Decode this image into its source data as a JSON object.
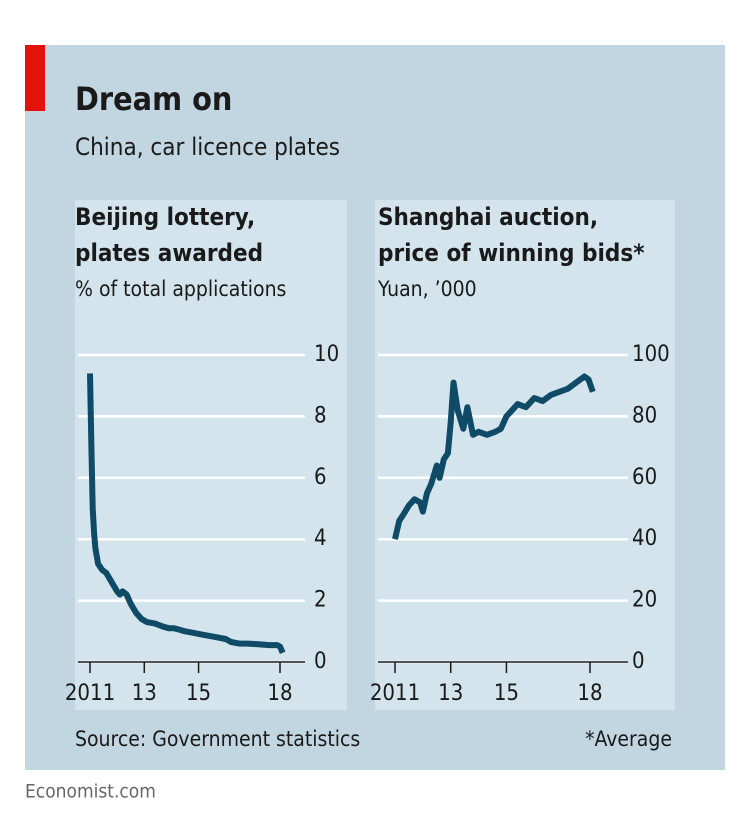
{
  "header": {
    "title": "Dream on",
    "subtitle": "China, car licence plates"
  },
  "chart_data": [
    {
      "type": "line",
      "title": [
        "Beijing lottery,",
        "plates awarded"
      ],
      "subtitle": "% of total applications",
      "series": [
        {
          "name": "Beijing lottery",
          "color": "#0f4b66",
          "x": [
            2011.0,
            2011.05,
            2011.1,
            2011.15,
            2011.2,
            2011.3,
            2011.45,
            2011.6,
            2011.8,
            2012.0,
            2012.1,
            2012.2,
            2012.35,
            2012.5,
            2012.7,
            2012.9,
            2013.1,
            2013.4,
            2013.7,
            2013.9,
            2014.1,
            2014.3,
            2014.5,
            2014.8,
            2015.1,
            2015.4,
            2015.7,
            2016.0,
            2016.2,
            2016.5,
            2016.8,
            2017.2,
            2017.6,
            2017.9,
            2018.0,
            2018.1
          ],
          "values": [
            9.4,
            7.0,
            5.0,
            4.2,
            3.7,
            3.2,
            3.0,
            2.9,
            2.6,
            2.3,
            2.2,
            2.3,
            2.2,
            1.9,
            1.6,
            1.4,
            1.3,
            1.25,
            1.15,
            1.1,
            1.1,
            1.05,
            1.0,
            0.95,
            0.9,
            0.85,
            0.8,
            0.75,
            0.65,
            0.6,
            0.6,
            0.58,
            0.55,
            0.55,
            0.5,
            0.3
          ]
        }
      ],
      "xlim": [
        2010.5,
        2019.0
      ],
      "xticks": [
        2011,
        {
          "value": 2013,
          "label": "13"
        },
        {
          "value": 2015,
          "label": "15"
        },
        {
          "value": 2018,
          "label": "18"
        }
      ],
      "ylim": [
        0,
        10
      ],
      "yticks": [
        0,
        2,
        4,
        6,
        8,
        10
      ],
      "grid": true
    },
    {
      "type": "line",
      "title": [
        "Shanghai auction,",
        "price of winning bids*"
      ],
      "subtitle": "Yuan, ’000",
      "series": [
        {
          "name": "Shanghai auction",
          "color": "#0f4b66",
          "x": [
            2011.0,
            2011.15,
            2011.3,
            2011.5,
            2011.7,
            2011.9,
            2012.0,
            2012.15,
            2012.3,
            2012.5,
            2012.6,
            2012.75,
            2012.9,
            2013.0,
            2013.1,
            2013.25,
            2013.45,
            2013.6,
            2013.8,
            2014.0,
            2014.3,
            2014.6,
            2014.8,
            2015.0,
            2015.2,
            2015.4,
            2015.7,
            2016.0,
            2016.3,
            2016.6,
            2016.9,
            2017.2,
            2017.5,
            2017.8,
            2017.95,
            2018.1
          ],
          "values": [
            40,
            46,
            48,
            51,
            53,
            52,
            49,
            55,
            58,
            64,
            60,
            66,
            68,
            78,
            91,
            82,
            76,
            83,
            74,
            75,
            74,
            75,
            76,
            80,
            82,
            84,
            83,
            86,
            85,
            87,
            88,
            89,
            91,
            93,
            92,
            88
          ]
        }
      ],
      "xlim": [
        2010.5,
        2019.0
      ],
      "xticks": [
        2011,
        {
          "value": 2013,
          "label": "13"
        },
        {
          "value": 2015,
          "label": "15"
        },
        {
          "value": 2018,
          "label": "18"
        }
      ],
      "ylim": [
        0,
        100
      ],
      "yticks": [
        0,
        20,
        40,
        60,
        80,
        100
      ],
      "grid": true
    }
  ],
  "footer": {
    "source": "Source: Government statistics",
    "note": "*Average",
    "brand": "Economist.com"
  }
}
